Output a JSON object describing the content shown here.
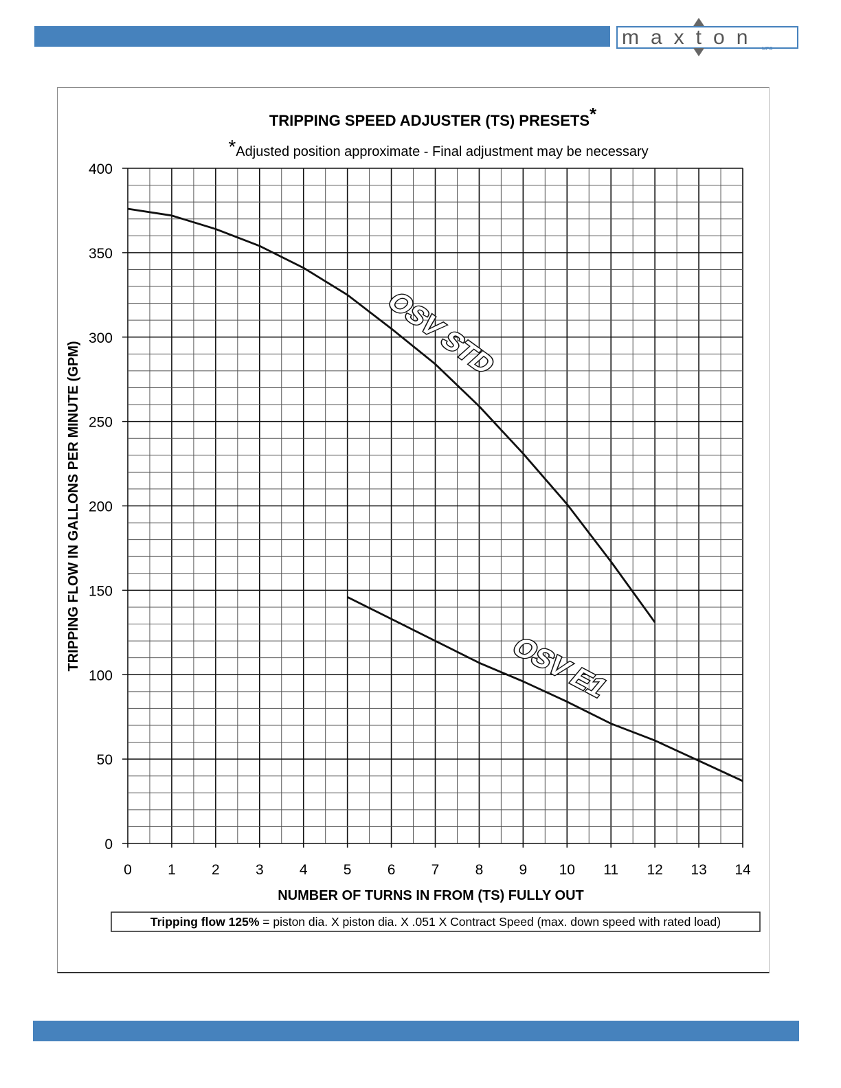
{
  "brand": {
    "name": "maxton",
    "sub": "MFG",
    "accent": "#4682bd"
  },
  "chart_data": {
    "type": "line",
    "title": "TRIPPING SPEED ADJUSTER (TS) PRESETS",
    "title_mark": "*",
    "subtitle_mark": "*",
    "subtitle": "Adjusted position approximate - Final adjustment may be necessary",
    "xlabel": "NUMBER OF TURNS IN FROM (TS) FULLY OUT",
    "ylabel": "TRIPPING FLOW IN GALLONS PER MINUTE (GPM)",
    "xlim": [
      0,
      14
    ],
    "ylim": [
      0,
      400
    ],
    "xticks": [
      "0",
      "1",
      "2",
      "3",
      "4",
      "5",
      "6",
      "7",
      "8",
      "9",
      "10",
      "11",
      "12",
      "13",
      "14"
    ],
    "yticks": [
      "0",
      "50",
      "100",
      "150",
      "200",
      "250",
      "300",
      "350",
      "400"
    ],
    "grid": true,
    "series": [
      {
        "name": "OSV STD",
        "x": [
          0,
          1,
          2,
          3,
          4,
          5,
          6,
          7,
          8,
          9,
          10,
          11,
          12
        ],
        "values": [
          376,
          372,
          364,
          354,
          341,
          325,
          305,
          284,
          259,
          231,
          201,
          167,
          131
        ]
      },
      {
        "name": "OSV E1",
        "x": [
          5,
          6,
          7,
          8,
          9,
          10,
          11,
          12,
          13,
          14
        ],
        "values": [
          146,
          133,
          120,
          107,
          96,
          84,
          71,
          61,
          49,
          37
        ]
      }
    ],
    "note_bold": "Tripping flow 125%",
    "note_rest": " = piston dia. X piston dia. X .051 X Contract Speed (max. down speed with rated load)"
  }
}
